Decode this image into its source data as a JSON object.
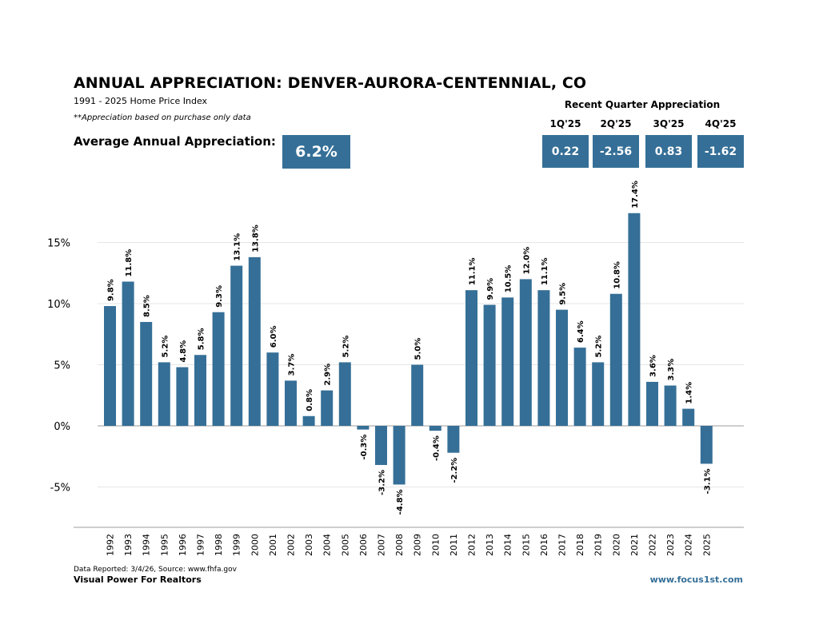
{
  "header": {
    "title": "ANNUAL APPRECIATION:  DENVER-AURORA-CENTENNIAL, CO",
    "subtitle": "1991 - 2025 Home Price Index",
    "note": "**Appreciation based on purchase only data",
    "average_label": "Average Annual Appreciation:",
    "average_value": "6.2%"
  },
  "recent_quarters": {
    "title": "Recent Quarter Appreciation",
    "quarters": [
      {
        "label": "1Q'25",
        "value": "0.22"
      },
      {
        "label": "2Q'25",
        "value": "-2.56"
      },
      {
        "label": "3Q'25",
        "value": "0.83"
      },
      {
        "label": "4Q'25",
        "value": "-1.62"
      }
    ]
  },
  "footer": {
    "source": "Data Reported: 3/4/26, Source: www.fhfa.gov",
    "brand": "Visual Power For Realtors",
    "url": "www.focus1st.com"
  },
  "colors": {
    "bar": "#356f97",
    "accent": "#356f97"
  },
  "chart_data": {
    "type": "bar",
    "title": "ANNUAL APPRECIATION:  DENVER-AURORA-CENTENNIAL, CO",
    "xlabel": "",
    "ylabel": "",
    "categories": [
      "1992",
      "1993",
      "1994",
      "1995",
      "1996",
      "1997",
      "1998",
      "1999",
      "2000",
      "2001",
      "2002",
      "2003",
      "2004",
      "2005",
      "2006",
      "2007",
      "2008",
      "2009",
      "2010",
      "2011",
      "2012",
      "2013",
      "2014",
      "2015",
      "2016",
      "2017",
      "2018",
      "2019",
      "2020",
      "2021",
      "2022",
      "2023",
      "2024",
      "2025"
    ],
    "values": [
      9.8,
      11.8,
      8.5,
      5.2,
      4.8,
      5.8,
      9.3,
      13.1,
      13.8,
      6.0,
      3.7,
      0.8,
      2.9,
      5.2,
      -0.3,
      -3.2,
      -4.8,
      5.0,
      -0.4,
      -2.2,
      11.1,
      9.9,
      10.5,
      12.0,
      11.1,
      9.5,
      6.4,
      5.2,
      10.8,
      17.4,
      3.6,
      3.3,
      1.4,
      -3.1
    ],
    "data_labels": [
      "9.8%",
      "11.8%",
      "8.5%",
      "5.2%",
      "4.8%",
      "5.8%",
      "9.3%",
      "13.1%",
      "13.8%",
      "6.0%",
      "3.7%",
      "0.8%",
      "2.9%",
      "5.2%",
      "-0.3%",
      "-3.2%",
      "-4.8%",
      "5.0%",
      "-0.4%",
      "-2.2%",
      "11.1%",
      "9.9%",
      "10.5%",
      "12.0%",
      "11.1%",
      "9.5%",
      "6.4%",
      "5.2%",
      "10.8%",
      "17.4%",
      "3.6%",
      "3.3%",
      "1.4%",
      "-3.1%"
    ],
    "yticks": [
      -5,
      0,
      5,
      10,
      15
    ],
    "ytick_labels": [
      "-5%",
      "0%",
      "5%",
      "10%",
      "15%"
    ],
    "ylim": [
      -8.3,
      18
    ],
    "grid": true,
    "legend": "none"
  }
}
